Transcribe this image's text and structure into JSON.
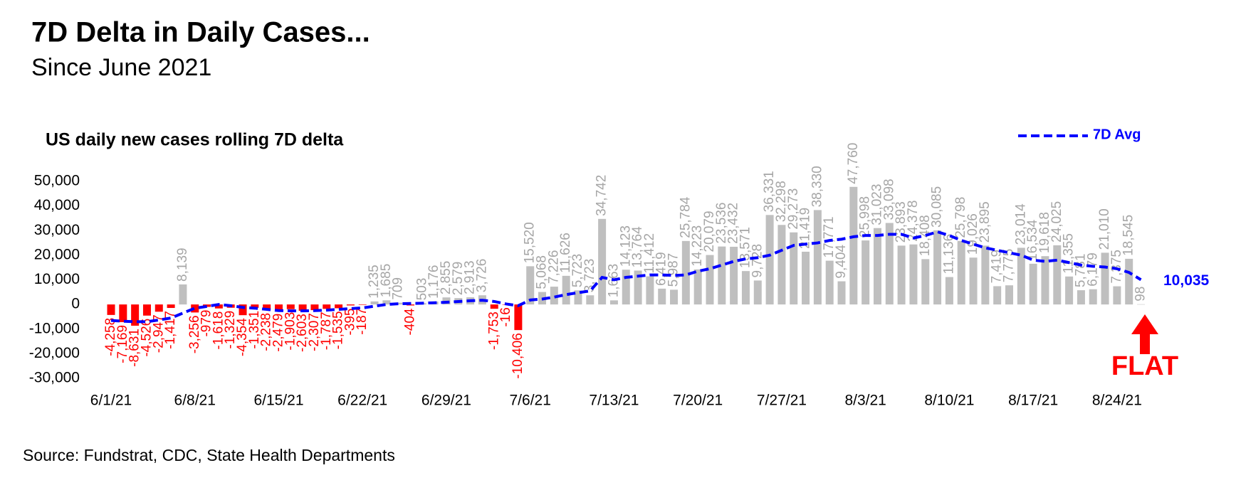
{
  "title": "7D Delta in Daily Cases...",
  "subtitle": "Since June 2021",
  "source": "Source: Fundstrat, CDC,  State Health Departments",
  "chart_data": {
    "type": "bar",
    "title": "US daily new cases rolling 7D delta",
    "categories": [
      "6/1/21",
      null,
      null,
      null,
      null,
      null,
      null,
      "6/8/21",
      null,
      null,
      null,
      null,
      null,
      null,
      "6/15/21",
      null,
      null,
      null,
      null,
      null,
      null,
      "6/22/21",
      null,
      null,
      null,
      null,
      null,
      null,
      "6/29/21",
      null,
      null,
      null,
      null,
      null,
      null,
      "7/6/21",
      null,
      null,
      null,
      null,
      null,
      null,
      "7/13/21",
      null,
      null,
      null,
      null,
      null,
      null,
      "7/20/21",
      null,
      null,
      null,
      null,
      null,
      null,
      "7/27/21",
      null,
      null,
      null,
      null,
      null,
      null,
      "8/3/21",
      null,
      null,
      null,
      null,
      null,
      null,
      "8/10/21",
      null,
      null,
      null,
      null,
      null,
      null,
      "8/17/21",
      null,
      null,
      null,
      null,
      null,
      null,
      "8/24/21",
      null,
      null
    ],
    "series": [
      {
        "type": "bar",
        "color": "#bfbfbf",
        "negative_color": "#ff0000",
        "label_color": "#a6a6a6",
        "values": [
          -4258,
          -7169,
          -8631,
          -4526,
          -2947,
          -1417,
          8139,
          -3256,
          -979,
          -1618,
          -1329,
          -4354,
          -1351,
          -2238,
          -2479,
          -1903,
          -2603,
          -2307,
          -1787,
          -1535,
          -395,
          -187,
          1235,
          1685,
          709,
          -404,
          503,
          1176,
          2855,
          2579,
          2913,
          3726,
          -1753,
          -16,
          -10406,
          15520,
          5068,
          7226,
          11626,
          5723,
          3723,
          34742,
          1663,
          14123,
          13764,
          11412,
          6419,
          5987,
          25784,
          14223,
          20079,
          23536,
          23432,
          13571,
          9728,
          36331,
          32298,
          29273,
          21419,
          38330,
          17771,
          9404,
          47760,
          25998,
          31023,
          33098,
          23893,
          24378,
          18408,
          30085,
          11136,
          25798,
          19026,
          23895,
          7419,
          7775,
          23014,
          16534,
          19618,
          24025,
          11355,
          5781,
          6179,
          21010,
          7375,
          18545,
          98
        ],
        "value_labels": [
          "-4,258",
          "-7,169",
          "-8,631",
          "-4,526",
          "-2,947",
          "-1,417",
          "8,139",
          "-3,256",
          "-979",
          "-1,618",
          "-1,329",
          "-4,354",
          "-1,351",
          "-2,238",
          "-2,479",
          "-1,903",
          "-2,603",
          "-2,307",
          "-1,787",
          "-1,535",
          "-395",
          "-187",
          "1,235",
          "1,685",
          "709",
          "-404",
          "503",
          "1,176",
          "2,855",
          "2,579",
          "2,913",
          "3,726",
          "-1,753",
          "-16",
          "-10,406",
          "15,520",
          "5,068",
          "7,226",
          "11,626",
          "5,723",
          "3,723",
          "34,742",
          "1,663",
          "14,123",
          "13,764",
          "11,412",
          "6,419",
          "5,987",
          "25,784",
          "14,223",
          "20,079",
          "23,536",
          "23,432",
          "13,571",
          "9,728",
          "36,331",
          "32,298",
          "29,273",
          "21,419",
          "38,330",
          "17,771",
          "9,404",
          "47,760",
          "25,998",
          "31,023",
          "33,098",
          "23,893",
          "24,378",
          "18,408",
          "30,085",
          "11,136",
          "25,798",
          "19,026",
          "23,895",
          "7,419",
          "7,775",
          "23,014",
          "16,534",
          "19,618",
          "24,025",
          "11,355",
          "5,781",
          "6,179",
          "21,010",
          "7,375",
          "18,545",
          "98"
        ]
      },
      {
        "type": "line",
        "name": "7D Avg",
        "color": "#0000ff",
        "dashed": true,
        "end_label": "10,035",
        "values": [
          -6500,
          -6800,
          -7000,
          -7000,
          -6300,
          -5500,
          -3500,
          -1500,
          -800,
          0,
          -500,
          -1200,
          -1500,
          -2000,
          -2500,
          -2600,
          -2600,
          -2500,
          -2300,
          -2000,
          -1700,
          -1400,
          -700,
          0,
          300,
          400,
          500,
          700,
          900,
          1200,
          1500,
          1700,
          1200,
          200,
          -500,
          1800,
          2200,
          3000,
          4000,
          4800,
          5500,
          11000,
          10000,
          11000,
          11500,
          12000,
          12000,
          11800,
          12000,
          13500,
          14500,
          16000,
          17500,
          18500,
          19000,
          20000,
          22000,
          24000,
          24500,
          25000,
          26000,
          26500,
          27500,
          28000,
          28000,
          28500,
          28500,
          27000,
          28000,
          29500,
          28000,
          26000,
          24500,
          23000,
          22000,
          21000,
          20000,
          18000,
          17500,
          18000,
          17000,
          16000,
          15500,
          15200,
          14500,
          13000,
          10035
        ]
      }
    ],
    "ylim": [
      -30000,
      50000
    ],
    "yticks": [
      {
        "value": -30000,
        "label": "-30,000"
      },
      {
        "value": -20000,
        "label": "-20,000"
      },
      {
        "value": -10000,
        "label": "-10,000"
      },
      0,
      {
        "value": 10000,
        "label": "10,000"
      },
      {
        "value": 20000,
        "label": "20,000"
      },
      {
        "value": 30000,
        "label": "30,000"
      },
      {
        "value": 40000,
        "label": "40,000"
      },
      {
        "value": 50000,
        "label": "50,000"
      }
    ],
    "legend": "top-right",
    "annotation": "FLAT",
    "annotation_color": "#ff0000"
  }
}
